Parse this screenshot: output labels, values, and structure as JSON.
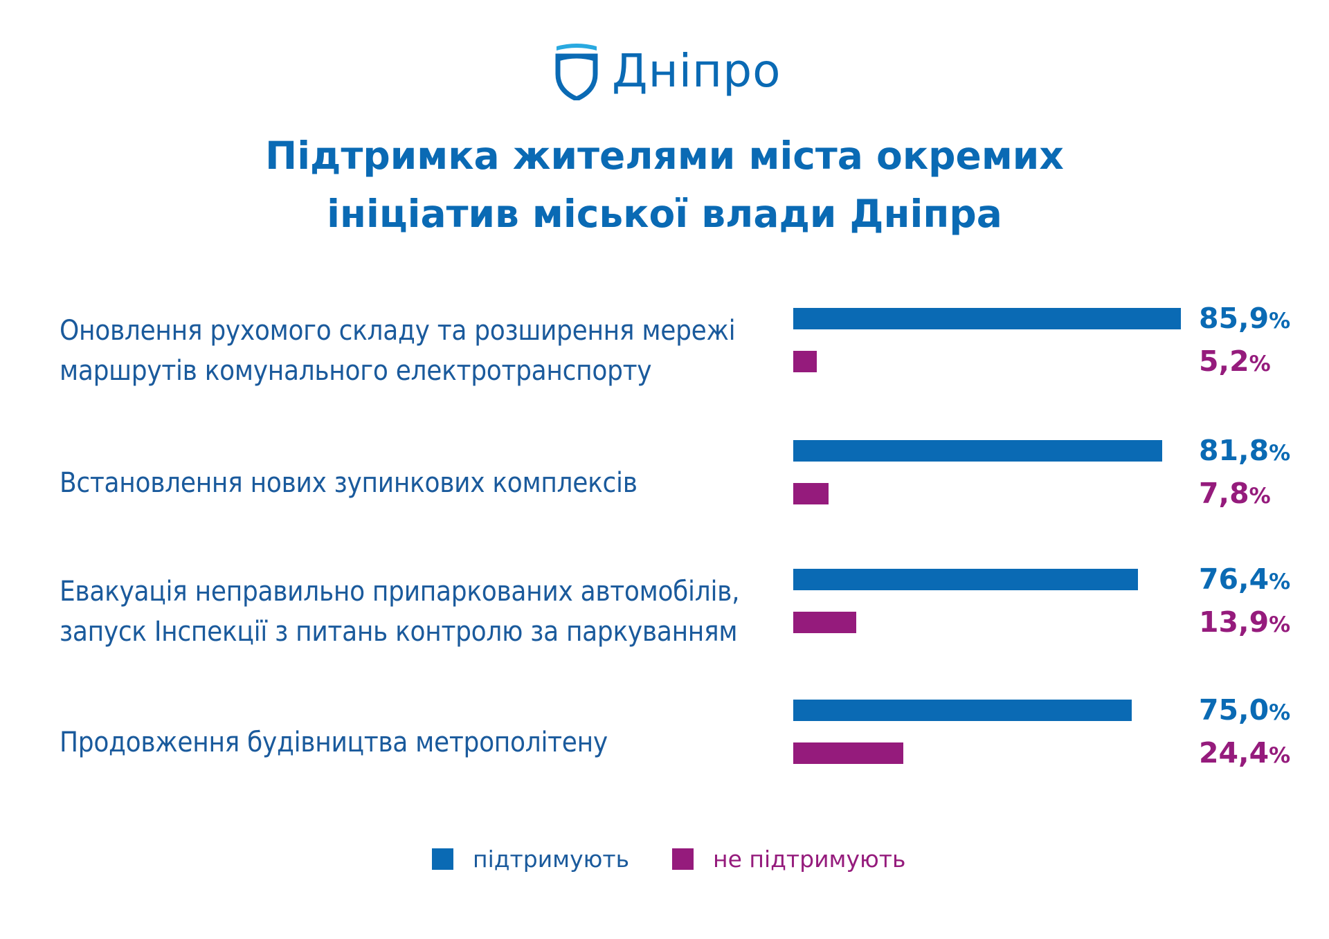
{
  "logo": {
    "text": "Дніпро"
  },
  "title": {
    "line1": "Підтримка жителями міста окремих",
    "line2": "ініціатив міської влади Дніпра"
  },
  "chart_data": {
    "type": "bar",
    "orientation": "horizontal",
    "categories": [
      [
        "Оновлення рухомого складу та розширення мережі",
        "маршрутів комунального електротранспорту"
      ],
      [
        "Встановлення нових зупинкових комплексів"
      ],
      [
        "Евакуація неправильно припаркованих автомобілів,",
        "запуск Інспекції з питань контролю за паркуванням"
      ],
      [
        "Продовження будівництва метрополітену"
      ]
    ],
    "series": [
      {
        "name": "підтримують",
        "color": "#0a6ab4",
        "values": [
          85.9,
          81.8,
          76.4,
          75.0
        ],
        "labels": [
          "85,9",
          "81,8",
          "76,4",
          "75,0"
        ]
      },
      {
        "name": "не підтримують",
        "color": "#951b7c",
        "values": [
          5.2,
          7.8,
          13.9,
          24.4
        ],
        "labels": [
          "5,2",
          "7,8",
          "13,9",
          "24,4"
        ]
      }
    ],
    "unit": "%",
    "xlim": [
      0,
      100
    ],
    "legend": "bottom-center"
  }
}
